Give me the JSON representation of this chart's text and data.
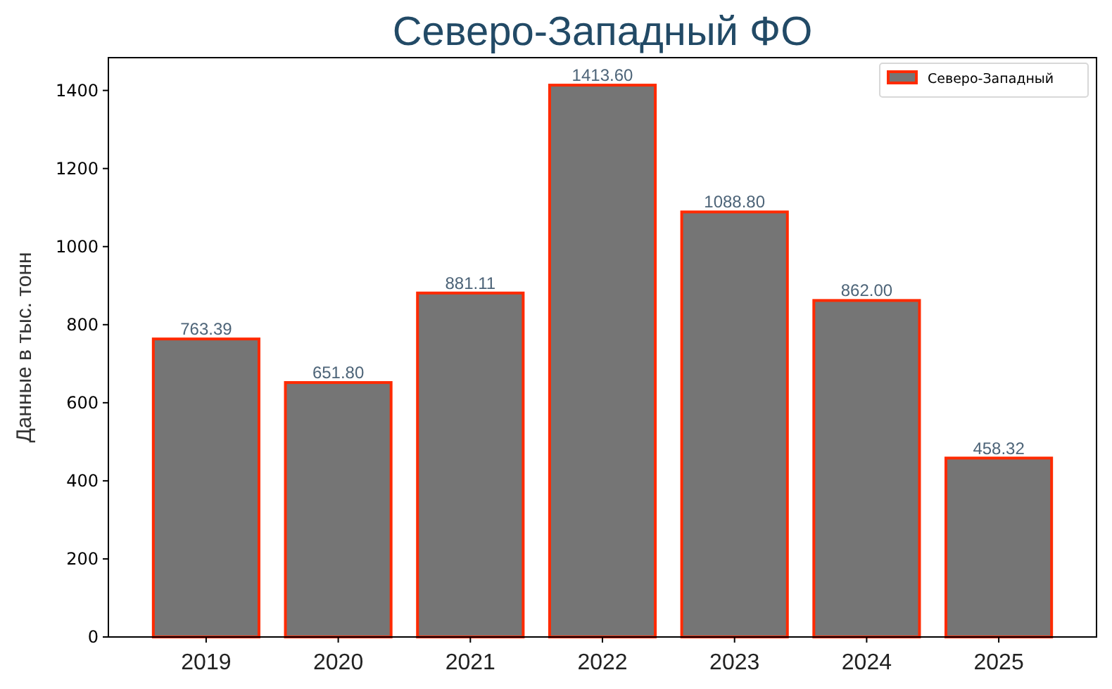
{
  "chart_data": {
    "type": "bar",
    "title": "Северо-Западный ФО",
    "ylabel": "Данные в тыс. тонн",
    "categories": [
      "2019",
      "2020",
      "2021",
      "2022",
      "2023",
      "2024",
      "2025"
    ],
    "series": [
      {
        "name": "Северо-Западный",
        "color": "#757575",
        "values": [
          763.39,
          651.8,
          881.11,
          1413.6,
          1088.8,
          862,
          458.32
        ],
        "value_labels": [
          "763.39",
          "651.80",
          "881.11",
          "1413.60",
          "1088.80",
          "862.00",
          "458.32"
        ]
      }
    ],
    "ylim": [
      0,
      1484
    ],
    "yticks": [
      0,
      200,
      400,
      600,
      800,
      1000,
      1200,
      1400
    ],
    "legend": "top right"
  }
}
